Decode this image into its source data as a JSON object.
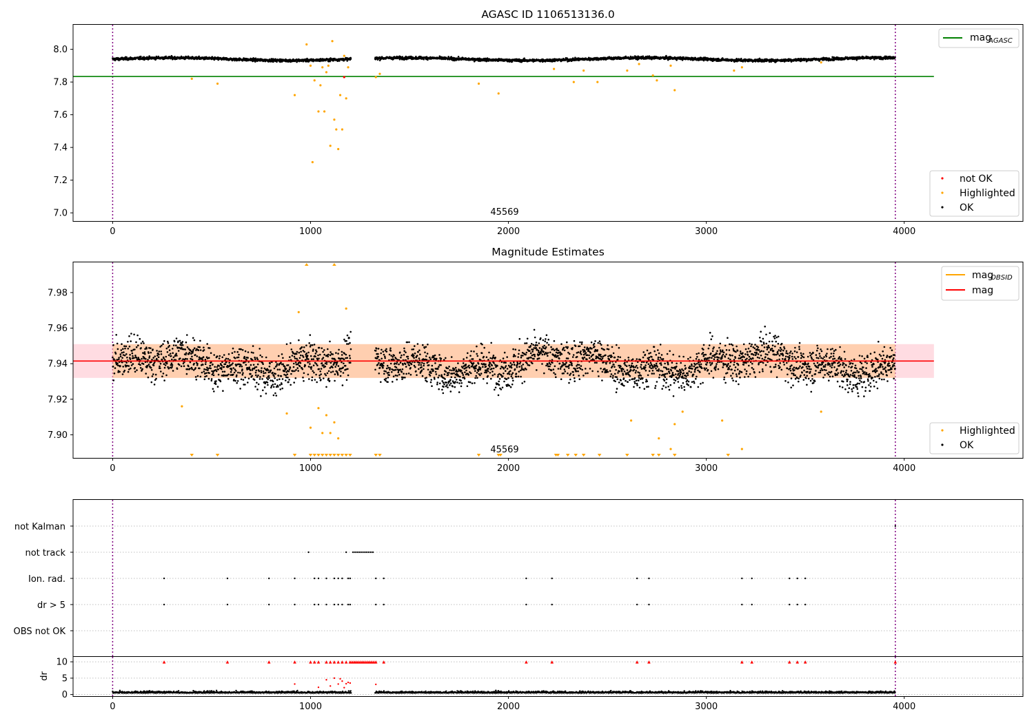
{
  "panels": {
    "top": {
      "title": "AGASC ID 1106513136.0",
      "obsid_label": "45569",
      "legend_line": {
        "label": "mag",
        "sub": "AGASC"
      },
      "legend_points": [
        {
          "label": "not OK",
          "color": "#ff0000"
        },
        {
          "label": "Highlighted",
          "color": "#ffa500"
        },
        {
          "label": "OK",
          "color": "#000000"
        }
      ]
    },
    "middle": {
      "title": "Magnitude Estimates",
      "obsid_label": "45569",
      "legend_lines": [
        {
          "label": "mag",
          "sub": "OBSID",
          "color": "#ffa500"
        },
        {
          "label": "mag",
          "sub": "",
          "color": "#ff0000"
        }
      ],
      "legend_points": [
        {
          "label": "Highlighted",
          "color": "#ffa500"
        },
        {
          "label": "OK",
          "color": "#000000"
        }
      ]
    },
    "flags": {
      "labels": [
        "not Kalman",
        "not track",
        "Ion. rad.",
        "dr > 5",
        "OBS not OK"
      ]
    },
    "dr": {
      "ylabel": "dr"
    }
  },
  "chart_data": [
    {
      "type": "scatter",
      "title": "AGASC ID 1106513136.0",
      "xlim": [
        -200,
        4600
      ],
      "ylim": [
        6.95,
        8.15
      ],
      "xticks": [
        0,
        1000,
        2000,
        3000,
        4000
      ],
      "yticks": [
        7.0,
        7.2,
        7.4,
        7.6,
        7.8,
        8.0
      ],
      "ytick_labels": [
        "7.0",
        "7.2",
        "7.4",
        "7.6",
        "7.8",
        "8.0"
      ],
      "vlines": [
        0,
        3955
      ],
      "hline": {
        "name": "mag_AGASC",
        "y": 7.834,
        "x": [
          -200,
          4150
        ],
        "color": "#008000"
      },
      "series": [
        {
          "name": "OK",
          "color": "#000000",
          "x_range": [
            0,
            3955
          ],
          "gap": [
            1205,
            1325
          ],
          "approx_mean": 7.94
        },
        {
          "name": "Highlighted",
          "color": "#ffa500",
          "x": [
            400,
            530,
            920,
            980,
            1000,
            1010,
            1020,
            1040,
            1050,
            1060,
            1070,
            1080,
            1090,
            1100,
            1110,
            1120,
            1130,
            1140,
            1150,
            1160,
            1170,
            1180,
            1190,
            1330,
            1350,
            1850,
            1950,
            2230,
            2330,
            2380,
            2450,
            2600,
            2660,
            2730,
            2750,
            2820,
            2840,
            3140,
            3180,
            3580
          ],
          "y": [
            7.82,
            7.79,
            7.72,
            8.03,
            7.9,
            7.31,
            7.81,
            7.62,
            7.78,
            7.89,
            7.62,
            7.86,
            7.9,
            7.41,
            8.05,
            7.57,
            7.51,
            7.39,
            7.72,
            7.51,
            7.96,
            7.7,
            7.89,
            7.83,
            7.85,
            7.79,
            7.73,
            7.88,
            7.8,
            7.87,
            7.8,
            7.87,
            7.91,
            7.84,
            7.81,
            7.9,
            7.75,
            7.87,
            7.89,
            7.92
          ]
        },
        {
          "name": "not OK",
          "color": "#ff0000",
          "x": [
            1170
          ],
          "y": [
            7.83
          ]
        }
      ],
      "annotation": "45569"
    },
    {
      "type": "scatter",
      "title": "Magnitude Estimates",
      "xlim": [
        -200,
        4600
      ],
      "ylim": [
        7.887,
        7.997
      ],
      "xticks": [
        0,
        1000,
        2000,
        3000,
        4000
      ],
      "yticks": [
        7.9,
        7.92,
        7.94,
        7.96,
        7.98
      ],
      "ytick_labels": [
        "7.90",
        "7.92",
        "7.94",
        "7.96",
        "7.98"
      ],
      "vlines": [
        0,
        3955
      ],
      "hline": {
        "name": "mag",
        "y": 7.9415,
        "x": [
          -200,
          4150
        ],
        "color": "#ff0000"
      },
      "band": {
        "y": [
          7.932,
          7.951
        ],
        "x": [
          -200,
          4150
        ]
      },
      "obsid_line": {
        "name": "mag_OBSID",
        "y": 7.9415,
        "x": [
          0,
          3955
        ],
        "color": "#ffa500"
      },
      "series": [
        {
          "name": "OK",
          "color": "#000000",
          "x_range": [
            0,
            3955
          ],
          "gap": [
            1205,
            1325
          ],
          "approx_mean": 7.94
        },
        {
          "name": "Highlighted",
          "color": "#ffa500",
          "x": [
            350,
            880,
            940,
            1000,
            1040,
            1060,
            1080,
            1100,
            1120,
            1140,
            1180,
            2620,
            2760,
            2820,
            2840,
            2880,
            3080,
            3180,
            3580
          ],
          "y": [
            7.916,
            7.912,
            7.969,
            7.904,
            7.915,
            7.901,
            7.911,
            7.901,
            7.907,
            7.898,
            7.971,
            7.908,
            7.898,
            7.892,
            7.906,
            7.913,
            7.908,
            7.892,
            7.913
          ]
        },
        {
          "name": "Highlighted (below range)",
          "color": "#ffa500",
          "x": [
            400,
            530,
            920,
            1000,
            1020,
            1040,
            1060,
            1080,
            1100,
            1120,
            1140,
            1160,
            1180,
            1200,
            1330,
            1350,
            1850,
            1950,
            1960,
            2240,
            2250,
            2300,
            2340,
            2380,
            2460,
            2600,
            2730,
            2760,
            2840,
            3110
          ]
        },
        {
          "name": "Highlighted (above range)",
          "color": "#ffa500",
          "x": [
            980,
            1120
          ]
        }
      ],
      "annotation": "45569"
    },
    {
      "type": "scatter",
      "title": "",
      "categories": [
        "not Kalman",
        "not track",
        "Ion. rad.",
        "dr > 5",
        "OBS not OK"
      ],
      "xlim": [
        -200,
        4600
      ],
      "vlines": [
        0,
        3955
      ],
      "series": [
        {
          "name": "not Kalman",
          "x": [
            3955
          ]
        },
        {
          "name": "not track",
          "x": [
            990,
            1180,
            1215,
            1225,
            1235,
            1245,
            1255,
            1265,
            1275,
            1285,
            1295,
            1305,
            1315
          ]
        },
        {
          "name": "Ion. rad.",
          "x": [
            260,
            580,
            790,
            920,
            1020,
            1040,
            1080,
            1120,
            1140,
            1160,
            1190,
            1200,
            1330,
            1370,
            2090,
            2220,
            2650,
            2710,
            3180,
            3230,
            3420,
            3460,
            3500
          ]
        },
        {
          "name": "dr > 5",
          "x": [
            260,
            580,
            790,
            920,
            1020,
            1040,
            1080,
            1120,
            1140,
            1160,
            1190,
            1200,
            1330,
            1370,
            2090,
            2220,
            2650,
            2710,
            3180,
            3230,
            3420,
            3460,
            3500
          ]
        },
        {
          "name": "OBS not OK",
          "x": []
        }
      ]
    },
    {
      "type": "scatter",
      "title": "",
      "xlabel": "",
      "ylabel": "dr",
      "xlim": [
        -200,
        4600
      ],
      "ylim": [
        -0.5,
        11.5
      ],
      "yticks": [
        0,
        5,
        10
      ],
      "xticks": [
        0,
        1000,
        2000,
        3000,
        4000
      ],
      "vlines": [
        0,
        3955
      ],
      "series": [
        {
          "name": "OK",
          "color": "#000000",
          "x_range": [
            0,
            3955
          ],
          "gap": [
            1205,
            1325
          ],
          "approx_mean": 0.5
        },
        {
          "name": "not OK",
          "color": "#ff0000",
          "x": [
            920,
            1040,
            1080,
            1100,
            1120,
            1140,
            1150,
            1160,
            1170,
            1180,
            1190,
            1200,
            1330
          ],
          "y": [
            3.2,
            2.2,
            4.5,
            2.6,
            5.0,
            3.2,
            4.8,
            4.1,
            2.1,
            3.3,
            3.7,
            3.5,
            3.1
          ]
        },
        {
          "name": "not OK (capped)",
          "color": "#ff0000",
          "x": [
            260,
            580,
            790,
            920,
            1000,
            1020,
            1040,
            1080,
            1100,
            1120,
            1140,
            1160,
            1180,
            1200,
            1210,
            1220,
            1230,
            1240,
            1250,
            1260,
            1270,
            1280,
            1290,
            1300,
            1310,
            1320,
            1330,
            1370,
            2090,
            2220,
            2650,
            2710,
            3180,
            3230,
            3420,
            3460,
            3500,
            3955
          ],
          "y": 10
        }
      ]
    }
  ]
}
